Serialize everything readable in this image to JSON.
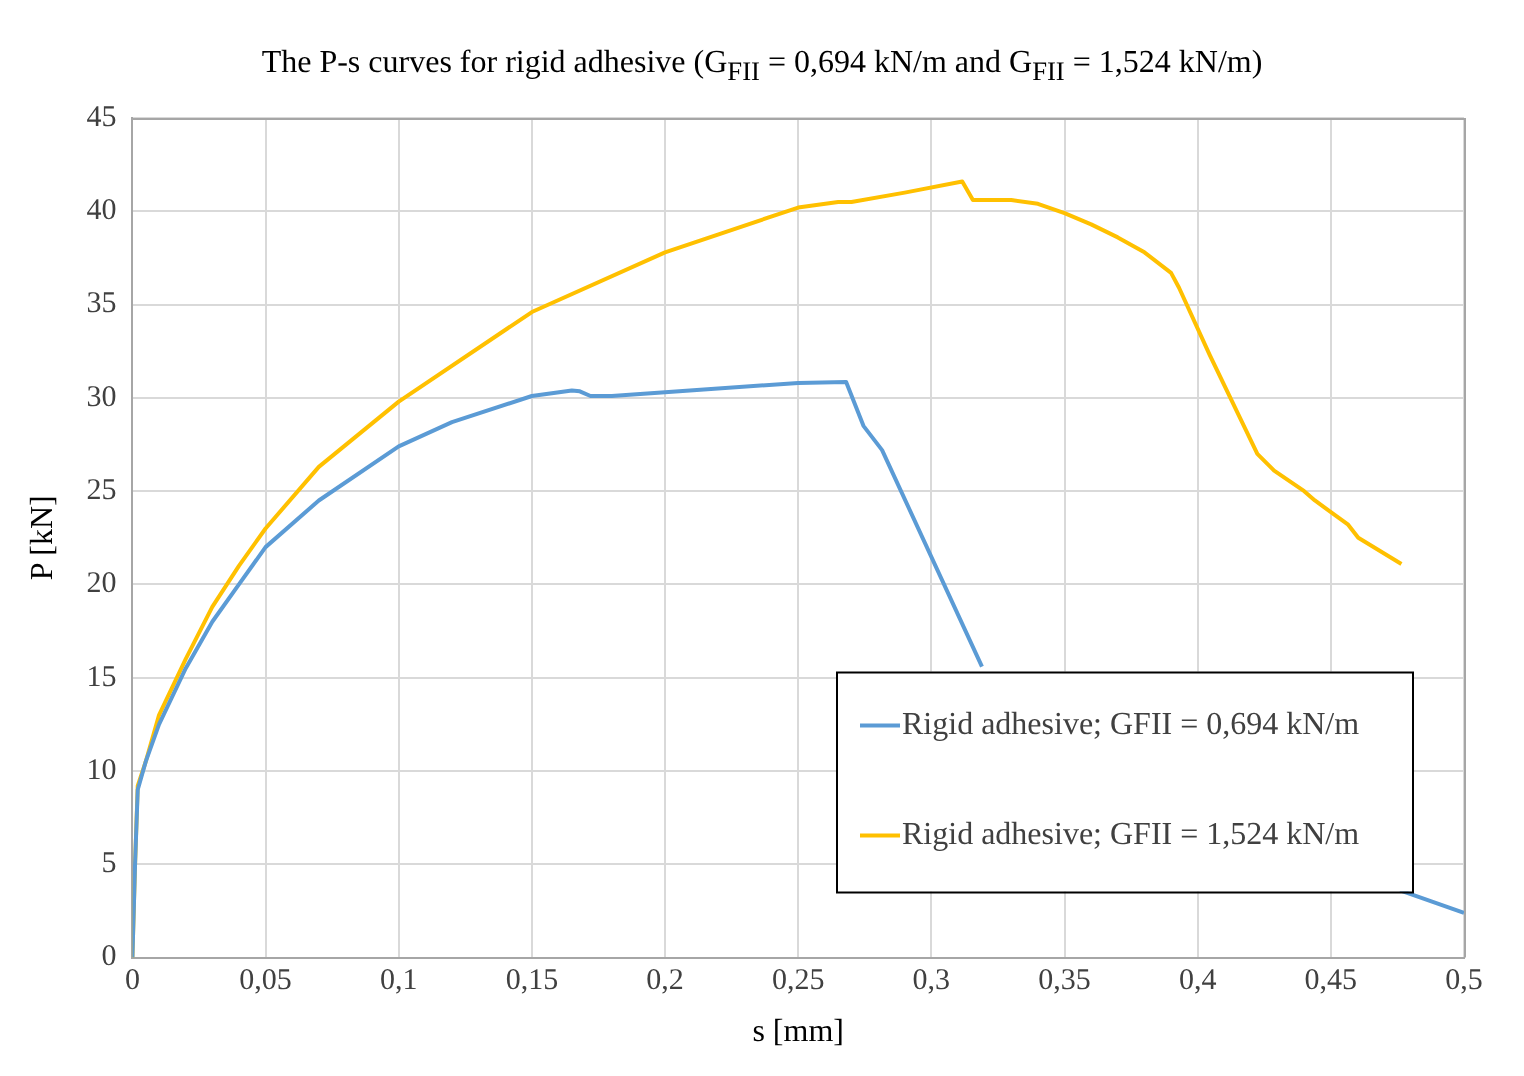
{
  "chart_data": {
    "type": "line",
    "title": "The P-s curves for rigid adhesive (G$_{FII}$ = 0,694 kN/m and G$_{FII}$ = 1,524 kN/m)",
    "xlabel": "s [mm]",
    "ylabel": "P [kN]",
    "xlim": [
      0,
      0.5
    ],
    "xticks": [
      0,
      {
        "value": 0.05,
        "label": "0,05"
      },
      {
        "value": 0.1,
        "label": "0,1"
      },
      {
        "value": 0.15,
        "label": "0,15"
      },
      {
        "value": 0.2,
        "label": "0,2"
      },
      {
        "value": 0.25,
        "label": "0,25"
      },
      {
        "value": 0.3,
        "label": "0,3"
      },
      {
        "value": 0.35,
        "label": "0,35"
      },
      {
        "value": 0.4,
        "label": "0,4"
      },
      {
        "value": 0.45,
        "label": "0,45"
      },
      {
        "value": 0.5,
        "label": "0,5"
      }
    ],
    "ylim": [
      0,
      45
    ],
    "yticks": [
      0,
      5,
      10,
      15,
      20,
      25,
      30,
      35,
      40,
      45
    ],
    "grid": true,
    "legend": "bottom right",
    "marker": "none",
    "line_style": "solid",
    "series": [
      {
        "name": "Rigid adhesive; GFII = 0,694 kN/m",
        "color": "#5b9bd5",
        "x": [
          0,
          0.001,
          0.002,
          0.005,
          0.01,
          0.02,
          0.03,
          0.04,
          0.05,
          0.07,
          0.1,
          0.12,
          0.15,
          0.165,
          0.168,
          0.172,
          0.18,
          0.2,
          0.25,
          0.268,
          0.2745,
          0.2815,
          0.319,
          0.4,
          0.476,
          0.5
        ],
        "values": [
          0,
          5,
          9,
          10.5,
          12.5,
          15.5,
          18,
          20,
          22,
          24.5,
          27.4,
          28.7,
          30.1,
          30.4,
          30.35,
          30.1,
          30.1,
          30.3,
          30.8,
          30.85,
          28.5,
          27.2,
          15.6,
          null,
          3.6,
          2.4
        ]
      },
      {
        "name": "Rigid adhesive; GFII = 1,524 kN/m",
        "color": "#ffc000",
        "x": [
          0,
          0.001,
          0.002,
          0.005,
          0.01,
          0.02,
          0.03,
          0.04,
          0.05,
          0.07,
          0.1,
          0.15,
          0.2,
          0.25,
          0.265,
          0.27,
          0.29,
          0.3116,
          0.3156,
          0.33,
          0.34,
          0.35,
          0.36,
          0.37,
          0.38,
          0.39,
          0.393,
          0.4045,
          0.4224,
          0.4287,
          0.44,
          0.444,
          0.4565,
          0.4603,
          0.4765
        ],
        "values": [
          0,
          5,
          9.2,
          10.5,
          13,
          16,
          18.8,
          21,
          23,
          26.3,
          29.8,
          34.6,
          37.8,
          40.2,
          40.5,
          40.5,
          41,
          41.6,
          40.6,
          40.6,
          40.4,
          39.9,
          39.3,
          38.6,
          37.8,
          36.7,
          35.9,
          32.3,
          27,
          26.1,
          25,
          24.5,
          23.2,
          22.5,
          21.1
        ]
      }
    ]
  }
}
